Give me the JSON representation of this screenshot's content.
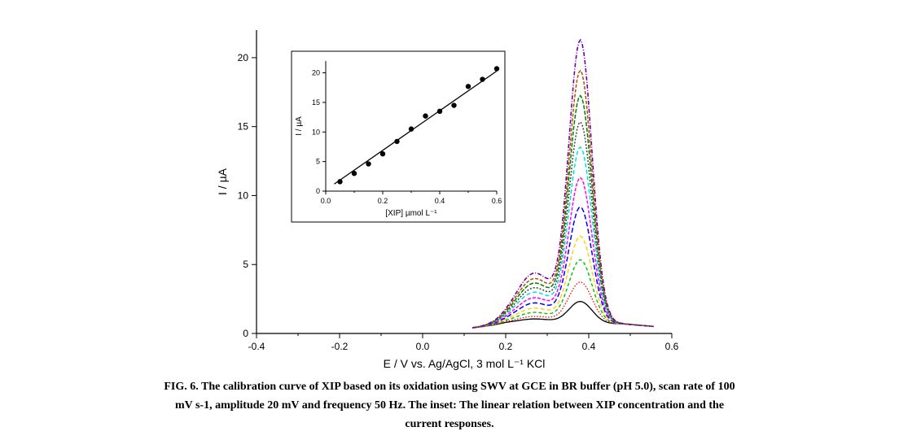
{
  "figure": {
    "background_color": "#ffffff",
    "main": {
      "type": "line",
      "xlabel": "E / V vs. Ag/AgCl, 3 mol L⁻¹ KCl",
      "ylabel": "I / µA",
      "label_fontsize": 14,
      "label_fontfamily": "Arial, Helvetica, sans-serif",
      "tick_fontsize": 12,
      "axis_color": "#000000",
      "axis_width": 1.2,
      "xlim": [
        -0.4,
        0.6
      ],
      "ylim": [
        0,
        22
      ],
      "xticks": [
        -0.4,
        -0.2,
        0.0,
        0.2,
        0.4,
        0.6
      ],
      "yticks": [
        0,
        5,
        10,
        15,
        20
      ],
      "tick_len_major": 6,
      "tick_len_minor": 3,
      "curves": [
        {
          "color": "#000000",
          "dash": "none",
          "lw": 1.3,
          "peak": 1.6
        },
        {
          "color": "#ff0000",
          "dash": "1.5,2",
          "lw": 1.3,
          "peak": 3.0
        },
        {
          "color": "#00c000",
          "dash": "4,3",
          "lw": 1.4,
          "peak": 4.6
        },
        {
          "color": "#ffd000",
          "dash": "5,3",
          "lw": 1.4,
          "peak": 6.3
        },
        {
          "color": "#0000ff",
          "dash": "6,3",
          "lw": 1.5,
          "peak": 8.4
        },
        {
          "color": "#ff00ff",
          "dash": "4,2",
          "lw": 1.5,
          "peak": 10.5
        },
        {
          "color": "#00e0e0",
          "dash": "5,3",
          "lw": 1.5,
          "peak": 12.7
        },
        {
          "color": "#404040",
          "dash": "2,2",
          "lw": 1.5,
          "peak": 14.5
        },
        {
          "color": "#008000",
          "dash": "5,2",
          "lw": 1.5,
          "peak": 16.4
        },
        {
          "color": "#b05000",
          "dash": "4,2",
          "lw": 1.5,
          "peak": 18.2
        },
        {
          "color": "#7000a0",
          "dash": "5,2,1,2",
          "lw": 1.6,
          "peak": 20.4
        }
      ],
      "peak_x": 0.38,
      "baseline_left_y": 0.4,
      "baseline_mid_y": 0.7,
      "shoulder_x": 0.27,
      "shoulder_y_factor": 0.18,
      "right_end_y": 0.5
    },
    "inset": {
      "type": "scatter-line",
      "frame_color": "#000000",
      "frame_width": 1.0,
      "background": "#ffffff",
      "xlabel": "[XIP] µmol L⁻¹",
      "ylabel": "I / µA",
      "label_fontsize": 10,
      "tick_fontsize": 9,
      "xlim": [
        0.0,
        0.6
      ],
      "ylim": [
        0,
        22
      ],
      "xticks": [
        0.0,
        0.2,
        0.4,
        0.6
      ],
      "yticks": [
        0,
        5,
        10,
        15,
        20
      ],
      "line": {
        "slope": 33.5,
        "intercept": 0.2,
        "color": "#000000",
        "lw": 1.3
      },
      "points": {
        "marker": "circle",
        "r": 3.2,
        "color": "#000000",
        "x": [
          0.05,
          0.1,
          0.15,
          0.2,
          0.25,
          0.3,
          0.35,
          0.4,
          0.45,
          0.5,
          0.55,
          0.6
        ],
        "y": [
          1.6,
          3.0,
          4.6,
          6.3,
          8.4,
          10.5,
          12.7,
          13.5,
          14.5,
          17.7,
          18.9,
          20.7
        ]
      }
    }
  },
  "caption": {
    "label": "FIG. 6.",
    "line1": "The calibration curve of XIP based on its oxidation using SWV at GCE in BR buffer (pH 5.0), scan rate of 100",
    "line2": "mV s-1, amplitude 20 mV and frequency 50 Hz. The inset: The linear relation between XIP concentration and the",
    "line3": "current responses."
  }
}
